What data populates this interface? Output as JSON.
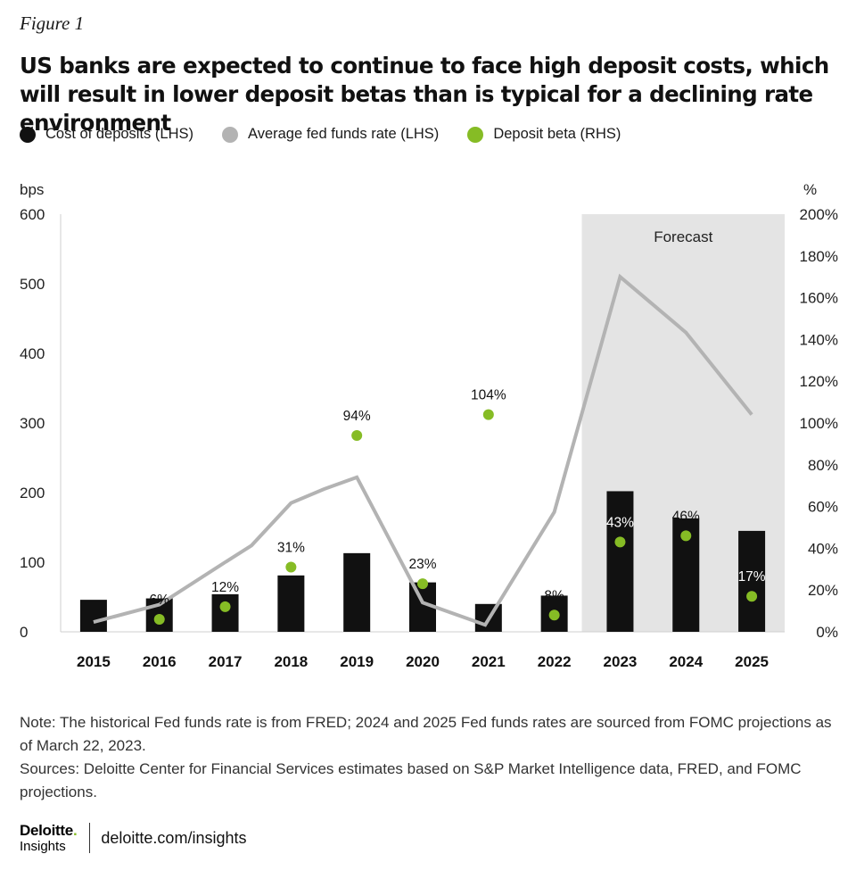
{
  "figure_label": "Figure 1",
  "title": "US banks are expected to continue to face high deposit costs, which will result in lower deposit betas than is typical for a declining rate environment",
  "legend": {
    "items": [
      {
        "label": "Cost of deposits (LHS)",
        "color": "#111111"
      },
      {
        "label": "Average fed funds rate (LHS)",
        "color": "#b3b3b3"
      },
      {
        "label": "Deposit beta (RHS)",
        "color": "#86bc25"
      }
    ]
  },
  "chart_data": {
    "type": "bar",
    "categories": [
      "2015",
      "2016",
      "2017",
      "2018",
      "2019",
      "2020",
      "2021",
      "2022",
      "2023",
      "2024",
      "2025"
    ],
    "left_axis": {
      "unit_label": "bps",
      "min": 0,
      "max": 600,
      "ticks": [
        0,
        100,
        200,
        300,
        400,
        500,
        600
      ]
    },
    "right_axis": {
      "unit_label": "%",
      "min": 0,
      "max": 200,
      "ticks": [
        "0%",
        "20%",
        "40%",
        "60%",
        "80%",
        "100%",
        "120%",
        "140%",
        "160%",
        "180%",
        "200%"
      ]
    },
    "forecast": {
      "label": "Forecast",
      "start": "2023",
      "end": "2025"
    },
    "series": [
      {
        "name": "Cost of deposits (LHS)",
        "kind": "bar",
        "axis": "left",
        "color": "#111111",
        "values": [
          46,
          48,
          54,
          81,
          113,
          71,
          40,
          52,
          202,
          163,
          145
        ]
      },
      {
        "name": "Average fed funds rate (LHS)",
        "kind": "line",
        "axis": "left",
        "color": "#b3b3b3",
        "points": [
          [
            0,
            14
          ],
          [
            1,
            39
          ],
          [
            2,
            100
          ],
          [
            2.4,
            124
          ],
          [
            3,
            185
          ],
          [
            3.5,
            205
          ],
          [
            4,
            222
          ],
          [
            5,
            42
          ],
          [
            5.95,
            10
          ],
          [
            7,
            172
          ],
          [
            8,
            510
          ],
          [
            9,
            430
          ],
          [
            10,
            312
          ]
        ]
      },
      {
        "name": "Deposit beta (RHS)",
        "kind": "dot",
        "axis": "right",
        "color": "#86bc25",
        "values": [
          null,
          6,
          12,
          31,
          94,
          23,
          104,
          8,
          43,
          46,
          17
        ],
        "labels": [
          "",
          "6%",
          "12%",
          "31%",
          "94%",
          "23%",
          "104%",
          "8%",
          "43%",
          "46%",
          "17%"
        ]
      }
    ]
  },
  "notes": {
    "note": "Note: The historical Fed funds rate is from FRED; 2024 and 2025 Fed funds rates are sourced from FOMC projections as of March 22, 2023.",
    "sources": "Sources: Deloitte Center for Financial Services estimates based on S&P Market Intelligence data, FRED, and FOMC projections."
  },
  "footer": {
    "logo_main": "Deloitte",
    "logo_dot": ".",
    "logo_sub": "Insights",
    "url": "deloitte.com/insights"
  }
}
